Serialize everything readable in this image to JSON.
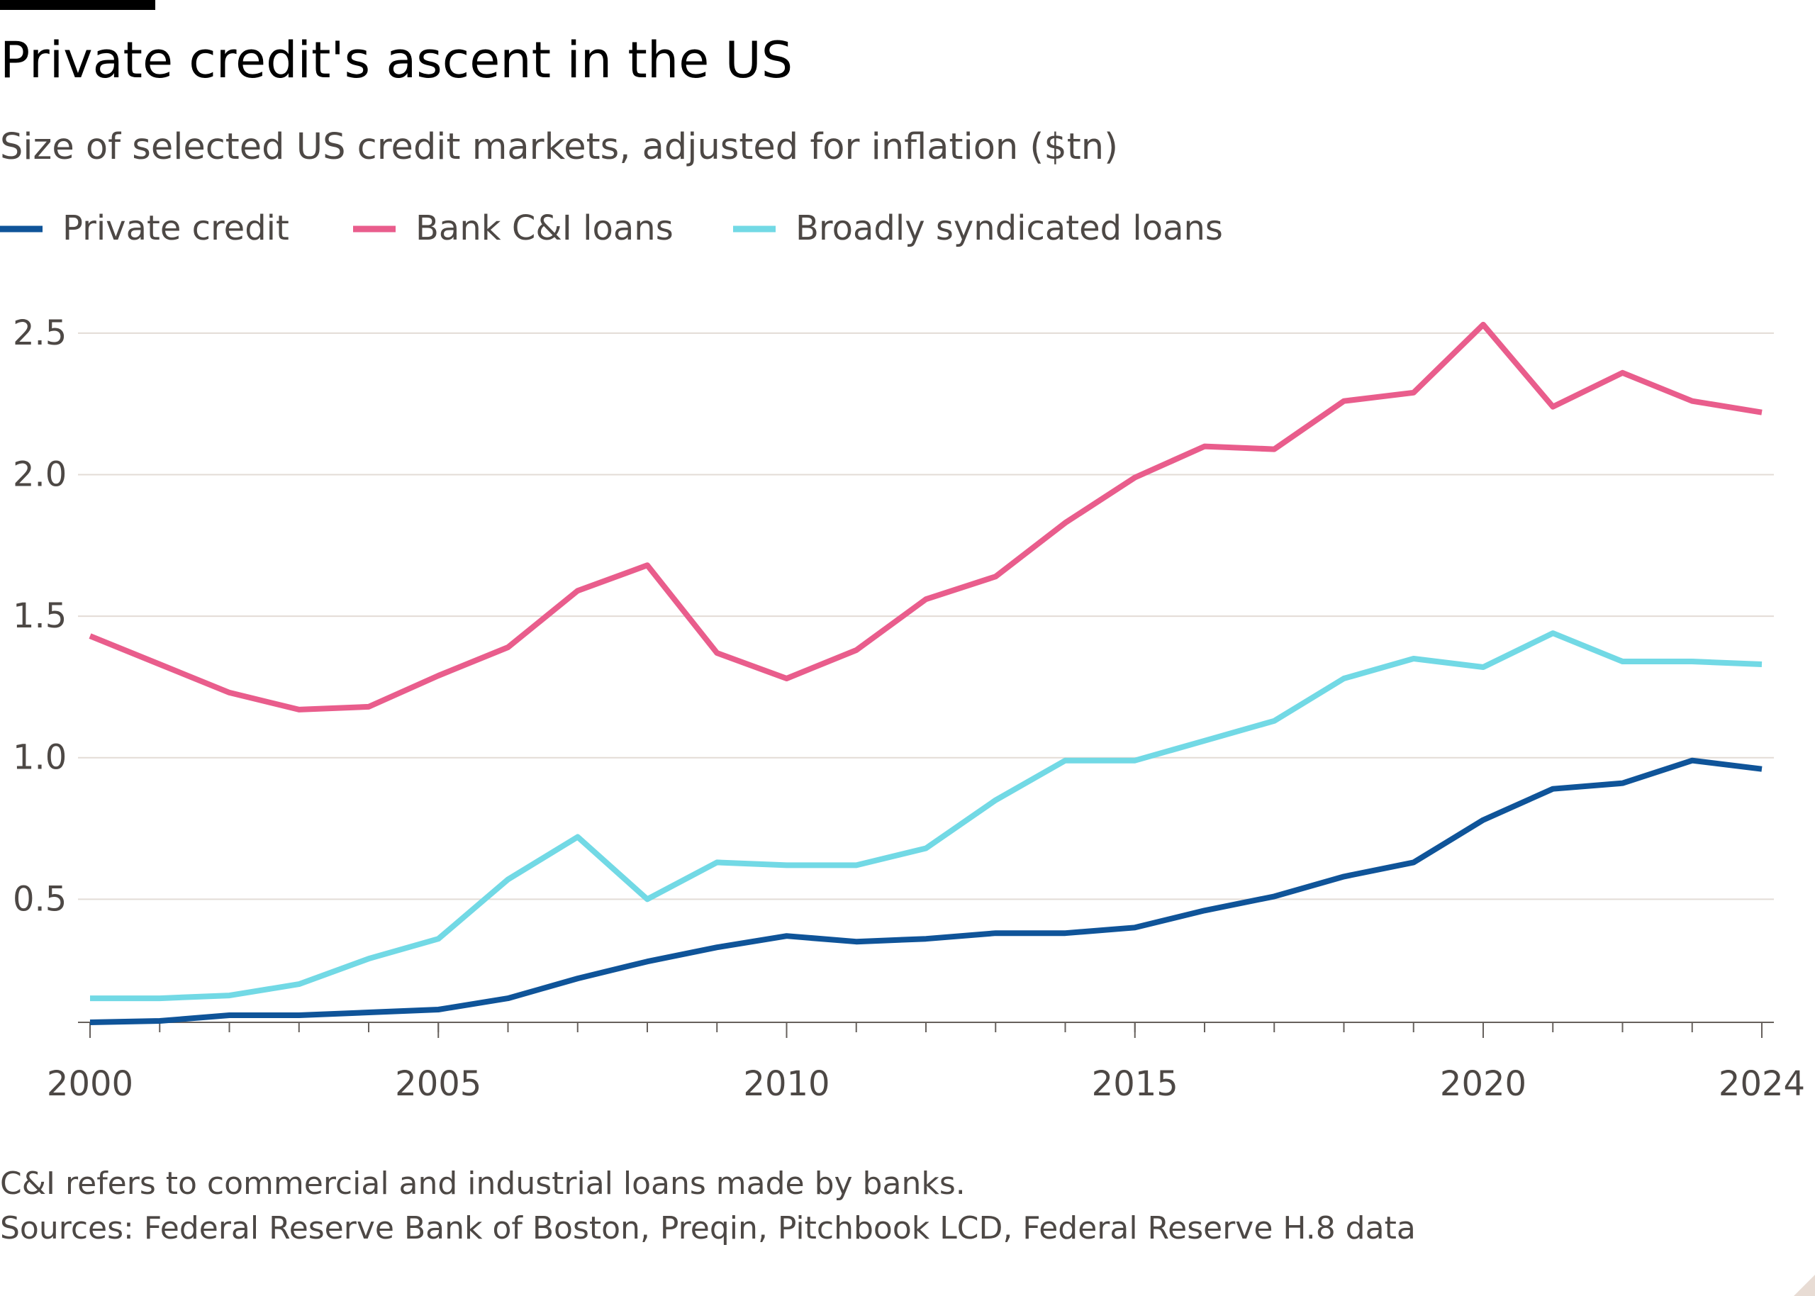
{
  "chart_data": {
    "type": "line",
    "title": "Private credit's ascent in the US",
    "subtitle": "Size of selected US credit markets, adjusted for inflation ($tn)",
    "x": [
      2000,
      2001,
      2002,
      2003,
      2004,
      2005,
      2006,
      2007,
      2008,
      2009,
      2010,
      2011,
      2012,
      2013,
      2014,
      2015,
      2016,
      2017,
      2018,
      2019,
      2020,
      2021,
      2022,
      2023,
      2024
    ],
    "series": [
      {
        "name": "Private credit",
        "color": "#0f5499",
        "values": [
          0.065,
          0.07,
          0.09,
          0.09,
          0.1,
          0.11,
          0.15,
          0.22,
          0.28,
          0.33,
          0.37,
          0.35,
          0.36,
          0.38,
          0.38,
          0.4,
          0.46,
          0.51,
          0.58,
          0.63,
          0.78,
          0.89,
          0.91,
          0.99,
          0.96
        ]
      },
      {
        "name": "Bank C&I loans",
        "color": "#e95d8c",
        "values": [
          1.43,
          1.33,
          1.23,
          1.17,
          1.18,
          1.29,
          1.39,
          1.59,
          1.68,
          1.37,
          1.28,
          1.38,
          1.56,
          1.64,
          1.83,
          1.99,
          2.1,
          2.09,
          2.26,
          2.29,
          2.53,
          2.24,
          2.36,
          2.26,
          2.22
        ]
      },
      {
        "name": "Broadly syndicated loans",
        "color": "#72d9e5",
        "values": [
          0.15,
          0.15,
          0.16,
          0.2,
          0.29,
          0.36,
          0.57,
          0.72,
          0.5,
          0.63,
          0.62,
          0.62,
          0.68,
          0.85,
          0.99,
          0.99,
          1.06,
          1.13,
          1.28,
          1.35,
          1.32,
          1.44,
          1.34,
          1.34,
          1.33
        ]
      }
    ],
    "xlim": [
      2000,
      2024
    ],
    "xticks": [
      2000,
      2005,
      2010,
      2015,
      2020,
      2024
    ],
    "ylim": [
      0.065,
      2.6
    ],
    "yticks": [
      {
        "value": 0.5,
        "label": "0.5"
      },
      {
        "value": 1,
        "label": "1.0"
      },
      {
        "value": 1.5,
        "label": "1.5"
      },
      {
        "value": 2,
        "label": "2.0"
      },
      {
        "value": 2.5,
        "label": "2.5"
      }
    ],
    "grid": true,
    "notes": [
      "C&I refers to commercial and industrial loans made by banks.",
      "Sources: Federal Reserve Bank of Boston, Preqin, Pitchbook LCD, Federal Reserve H.8 data"
    ]
  }
}
